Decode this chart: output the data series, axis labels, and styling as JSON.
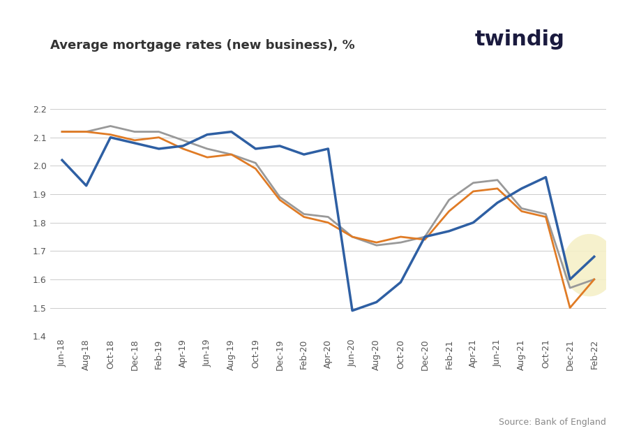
{
  "title": "Average mortgage rates (new business), %",
  "source": "Source: Bank of England",
  "twindig_text": "twindig",
  "ylim": [
    1.4,
    2.25
  ],
  "yticks": [
    1.4,
    1.5,
    1.6,
    1.7,
    1.8,
    1.9,
    2.0,
    2.1,
    2.2
  ],
  "x_labels": [
    "Jun-18",
    "Aug-18",
    "Oct-18",
    "Dec-18",
    "Feb-19",
    "Apr-19",
    "Jun-19",
    "Aug-19",
    "Oct-19",
    "Dec-19",
    "Feb-20",
    "Apr-20",
    "Jun-20",
    "Aug-20",
    "Oct-20",
    "Dec-20",
    "Feb-21",
    "Apr-21",
    "Jun-21",
    "Aug-21",
    "Oct-21",
    "Dec-21",
    "Feb-22"
  ],
  "floating": [
    2.02,
    1.93,
    2.1,
    2.08,
    2.06,
    2.07,
    2.11,
    2.12,
    2.06,
    2.07,
    2.04,
    2.06,
    1.49,
    1.52,
    1.59,
    1.75,
    1.77,
    1.8,
    1.87,
    1.92,
    1.96,
    1.6,
    1.68
  ],
  "fixed": [
    2.12,
    2.12,
    2.11,
    2.09,
    2.1,
    2.06,
    2.03,
    2.04,
    1.99,
    1.88,
    1.82,
    1.8,
    1.75,
    1.73,
    1.75,
    1.74,
    1.84,
    1.91,
    1.92,
    1.84,
    1.82,
    1.5,
    1.6
  ],
  "overall": [
    2.12,
    2.12,
    2.14,
    2.12,
    2.12,
    2.09,
    2.06,
    2.04,
    2.01,
    1.89,
    1.83,
    1.82,
    1.75,
    1.72,
    1.73,
    1.75,
    1.88,
    1.94,
    1.95,
    1.85,
    1.83,
    1.57,
    1.6
  ],
  "floating_color": "#2e5fa3",
  "fixed_color": "#e07b25",
  "overall_color": "#999999",
  "background_color": "#ffffff",
  "highlight_circle_color": "#f5f0c8",
  "title_fontsize": 13,
  "label_fontsize": 9,
  "source_fontsize": 9,
  "legend_fontsize": 10
}
